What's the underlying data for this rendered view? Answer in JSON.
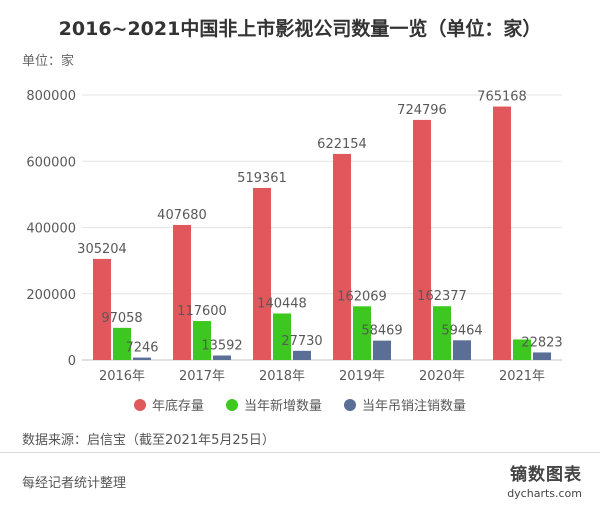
{
  "title": "2016~2021中国非上市影视公司数量一览（单位：家）",
  "unit_label": "单位：家",
  "source": "数据来源：启信宝（截至2021年5月25日）",
  "footer_left": "每经记者统计整理",
  "brand": {
    "name": "镝数图表",
    "url": "dycharts.com"
  },
  "chart_data": {
    "type": "bar",
    "categories": [
      "2016年",
      "2017年",
      "2018年",
      "2019年",
      "2020年",
      "2021年"
    ],
    "series": [
      {
        "name": "年底存量",
        "color": "#e0585b",
        "values": [
          305204,
          407680,
          519361,
          622154,
          724796,
          765168
        ]
      },
      {
        "name": "当年新增数量",
        "color": "#3ec81f",
        "values": [
          97058,
          117600,
          140448,
          162069,
          162377,
          62000
        ]
      },
      {
        "name": "当年吊销注销数量",
        "color": "#5b6e96",
        "values": [
          7246,
          13592,
          27730,
          58469,
          59464,
          22823
        ]
      }
    ],
    "data_labels": [
      [
        "305204",
        "407680",
        "519361",
        "622154",
        "724796",
        "765168"
      ],
      [
        "97058",
        "117600",
        "140448",
        "162069",
        "162377",
        ""
      ],
      [
        "7246",
        "13592",
        "27730",
        "58469",
        "59464",
        "22823"
      ]
    ],
    "ylim": [
      0,
      800000
    ],
    "yticks": [
      0,
      200000,
      400000,
      600000,
      800000
    ],
    "grid": true,
    "legend_position": "bottom"
  }
}
